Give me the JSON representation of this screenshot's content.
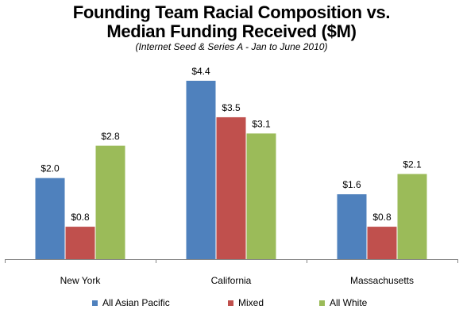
{
  "chart_data": {
    "type": "bar",
    "title_line1": "Founding Team Racial Composition vs.",
    "title_line2": "Median Funding Received ($M)",
    "subtitle": "(Internet Seed & Series A - Jan to June 2010)",
    "categories": [
      "New York",
      "California",
      "Massachusetts"
    ],
    "series": [
      {
        "name": "All Asian Pacific",
        "color": "#4f81bd",
        "values": [
          2.0,
          4.4,
          1.6
        ],
        "labels": [
          "$2.0",
          "$4.4",
          "$1.6"
        ]
      },
      {
        "name": "Mixed",
        "color": "#c0504d",
        "values": [
          0.8,
          3.5,
          0.8
        ],
        "labels": [
          "$0.8",
          "$3.5",
          "$0.8"
        ]
      },
      {
        "name": "All White",
        "color": "#9bbb59",
        "values": [
          2.8,
          3.1,
          2.1
        ],
        "labels": [
          "$2.8",
          "$3.1",
          "$2.1"
        ]
      }
    ],
    "ylim": [
      0,
      4.75
    ],
    "grid": false,
    "legend_position": "bottom"
  }
}
